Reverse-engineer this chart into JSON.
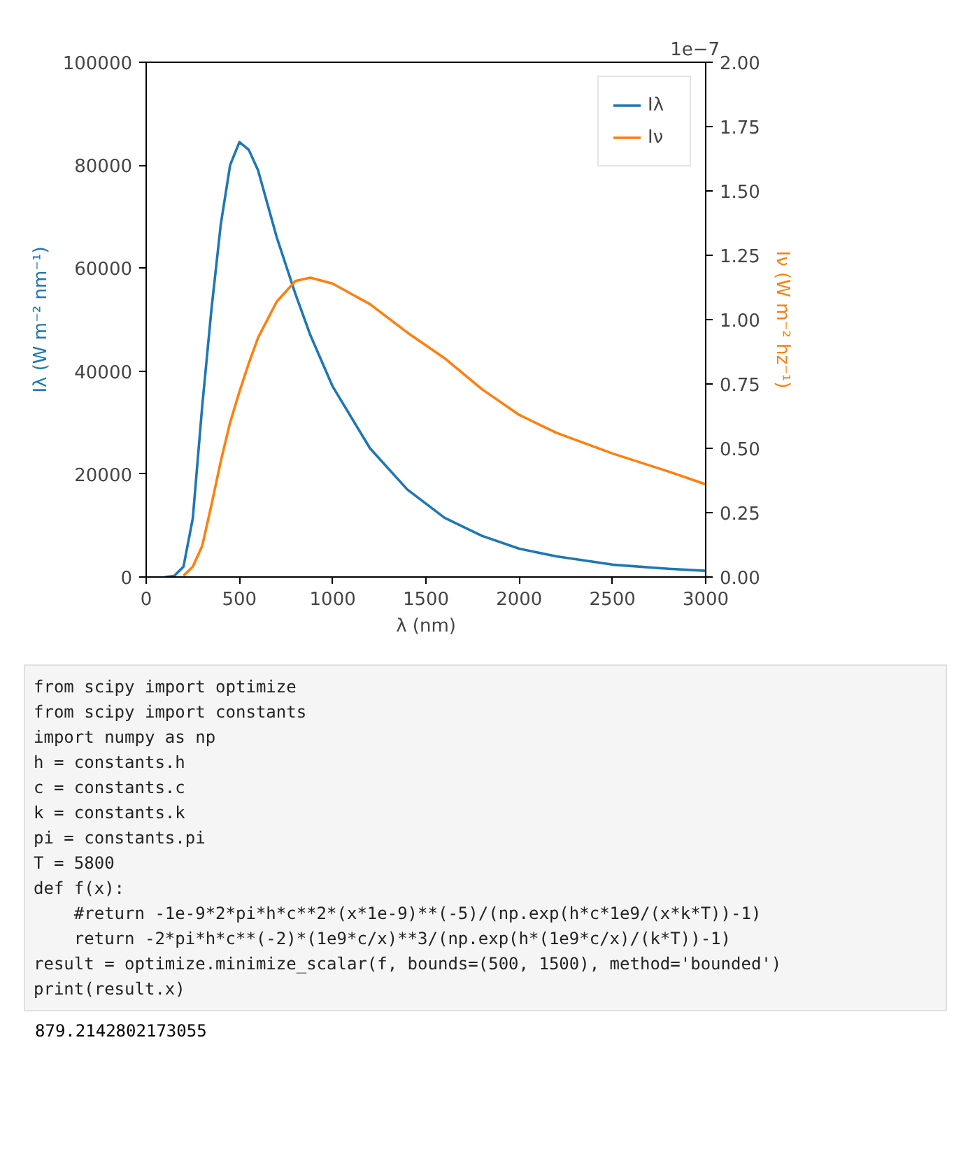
{
  "chart_data": {
    "type": "line",
    "xlabel": "λ (nm)",
    "ylabel": "Iλ (W m⁻² nm⁻¹)",
    "y2label": "Iν (W m⁻² hz⁻¹)",
    "x": [
      100,
      150,
      200,
      250,
      300,
      350,
      400,
      450,
      500,
      550,
      600,
      700,
      800,
      880,
      1000,
      1200,
      1400,
      1600,
      1800,
      2000,
      2200,
      2500,
      2800,
      3000
    ],
    "series": [
      {
        "name": "Iλ",
        "color": "#1f77b4",
        "values": [
          0,
          200,
          2000,
          11400,
          33000,
          52000,
          68500,
          80000,
          84500,
          83000,
          79000,
          66000,
          55000,
          47000,
          37000,
          25000,
          17000,
          11500,
          8000,
          5500,
          4000,
          2400,
          1600,
          1200
        ]
      },
      {
        "name": "Iν",
        "color": "#ff7f0e",
        "axis": "y2",
        "x": [
          200,
          250,
          300,
          350,
          400,
          450,
          500,
          550,
          600,
          700,
          800,
          880,
          1000,
          1200,
          1400,
          1600,
          1800,
          2000,
          2200,
          2500,
          2800,
          3000
        ],
        "values": [
          0.005,
          0.04,
          0.12,
          0.28,
          0.45,
          0.6,
          0.72,
          0.83,
          0.93,
          1.07,
          1.15,
          1.163,
          1.14,
          1.06,
          0.95,
          0.85,
          0.73,
          0.63,
          0.56,
          0.48,
          0.41,
          0.36
        ]
      }
    ],
    "xlim": [
      0,
      3000
    ],
    "xticks": [
      0,
      500,
      1000,
      1500,
      2000,
      2500,
      3000
    ],
    "ylim": [
      0,
      100000
    ],
    "yticks": [
      0,
      20000,
      40000,
      60000,
      80000,
      100000
    ],
    "y2lim": [
      0,
      2
    ],
    "y2ticks": [
      {
        "value": 0,
        "label": "0.00"
      },
      {
        "value": 0.25,
        "label": "0.25"
      },
      {
        "value": 0.5,
        "label": "0.50"
      },
      {
        "value": 0.75,
        "label": "0.75"
      },
      {
        "value": 1,
        "label": "1.00"
      },
      {
        "value": 1.25,
        "label": "1.25"
      },
      {
        "value": 1.5,
        "label": "1.50"
      },
      {
        "value": 1.75,
        "label": "1.75"
      },
      {
        "value": 2,
        "label": "2.00"
      }
    ],
    "grid": false,
    "legend": "top right",
    "annotations": [
      "1e−7",
      "from scipy import optimize",
      "from scipy import constants",
      "import numpy as np",
      "h = constants.h",
      "c = constants.c",
      "k = constants.k",
      "pi = constants.pi",
      "T = 5800",
      "def f(x):",
      "    #return -1e-9*2*pi*h*c**2*(x*1e-9)**(-5)/(np.exp(h*c*1e9/(x*k*T))-1)",
      "    return -2*pi*h*c**(-2)*(1e9*c/x)**3/(np.exp(h*(1e9*c/x)/(k*T))-1)",
      "result = optimize.minimize_scalar(f, bounds=(500, 1500), method='bounded')",
      "print(result.x)",
      "879.2142802173055"
    ]
  }
}
